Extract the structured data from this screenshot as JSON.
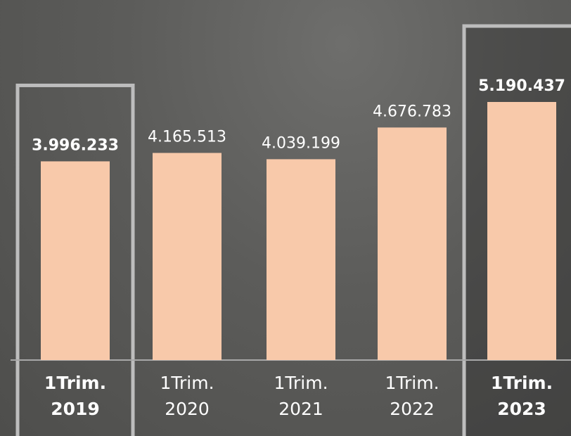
{
  "chart_data": {
    "type": "bar",
    "categories": [
      "1Trim. 2019",
      "1Trim. 2020",
      "1Trim. 2021",
      "1Trim. 2022",
      "1Trim. 2023"
    ],
    "values": [
      3996233,
      4165513,
      4039199,
      4676783,
      5190437
    ],
    "value_labels": [
      "3.996.233",
      "4.165.513",
      "4.039.199",
      "4.676.783",
      "5.190.437"
    ],
    "highlighted": [
      true,
      false,
      false,
      false,
      true
    ],
    "color": "#f8c9aa"
  }
}
